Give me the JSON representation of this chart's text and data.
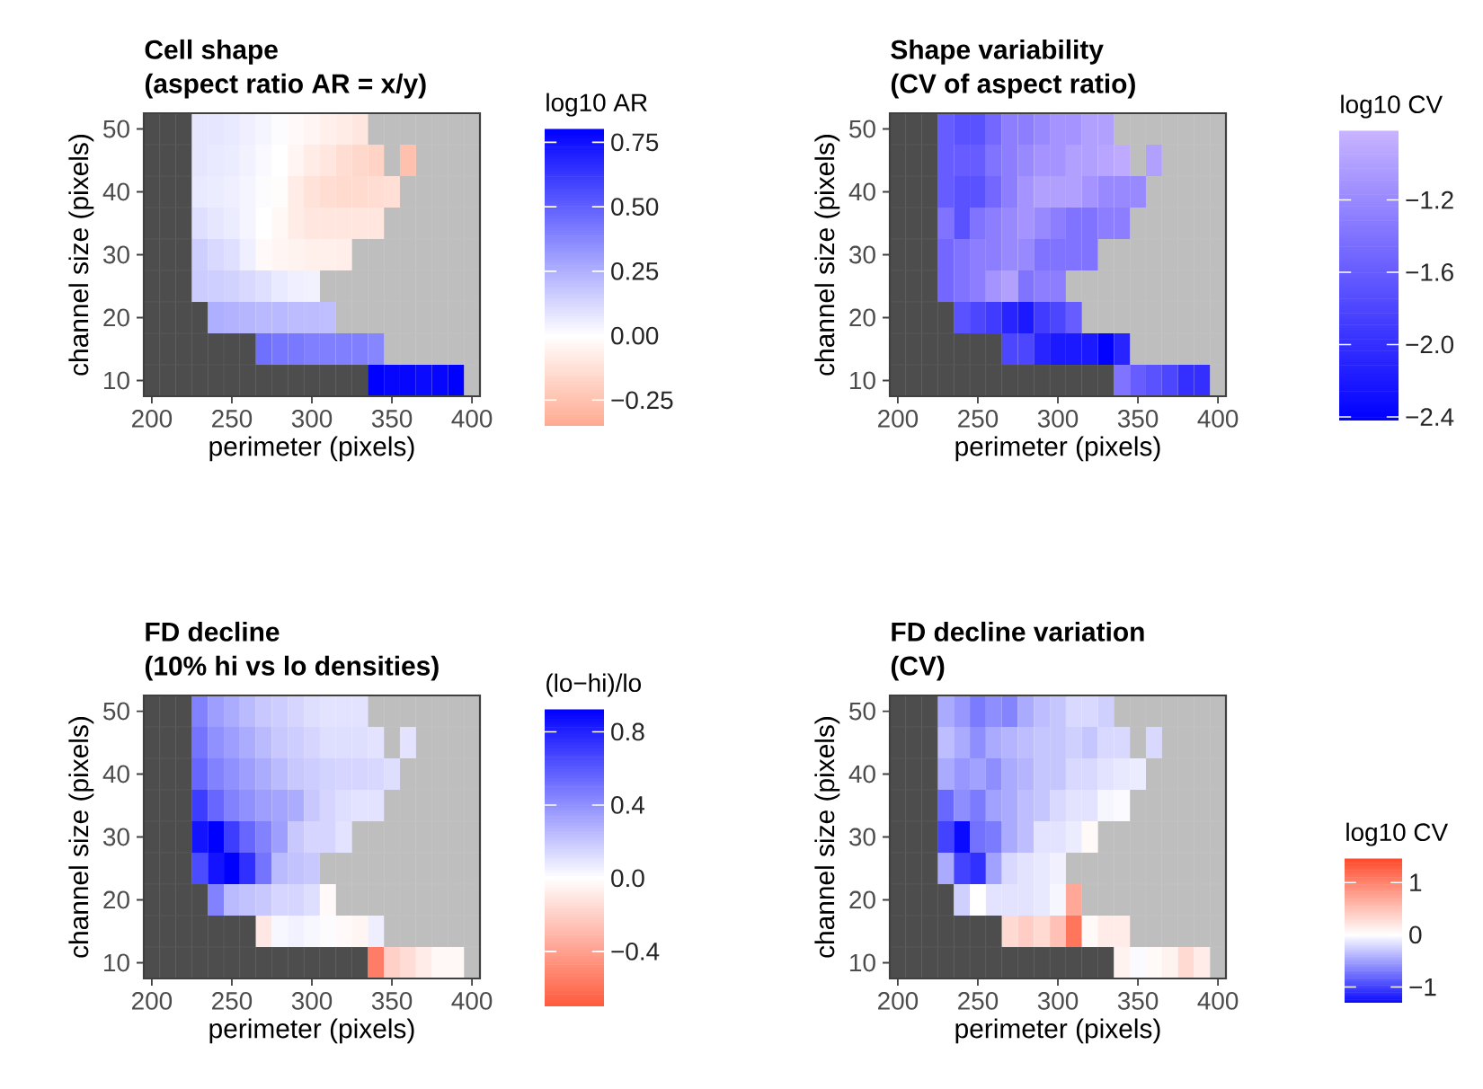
{
  "chart_data": [
    {
      "type": "heatmap",
      "title": "Cell shape",
      "subtitle": "(aspect ratio AR = x/y)",
      "xlabel": "perimeter (pixels)",
      "ylabel": "channel size (pixels)",
      "clabel": "log10 AR",
      "x": [
        200,
        210,
        220,
        230,
        240,
        250,
        260,
        270,
        280,
        290,
        300,
        310,
        320,
        330,
        340,
        350,
        360,
        370,
        380,
        390,
        400
      ],
      "y": [
        50,
        45,
        40,
        35,
        30,
        25,
        20,
        15,
        10
      ],
      "xlim": [
        195,
        405
      ],
      "xticks": [
        200,
        250,
        300,
        350,
        400
      ],
      "ylim": [
        7.5,
        52.5
      ],
      "yticks": [
        10,
        20,
        30,
        40,
        50
      ],
      "clim": [
        -0.35,
        0.8
      ],
      "cticks": [
        {
          "value": 0.75,
          "label": "0.75"
        },
        {
          "value": 0.5,
          "label": "0.50"
        },
        {
          "value": 0.25,
          "label": "0.25"
        },
        {
          "value": 0,
          "label": "0.00"
        },
        {
          "value": -0.25,
          "label": "−0.25"
        }
      ],
      "colors": [
        "#ffaa90",
        "#0000ff"
      ],
      "cells": [
        [
          null,
          null,
          null,
          0.08,
          0.08,
          0.07,
          0.05,
          0.03,
          0.01,
          -0.02,
          -0.04,
          -0.06,
          -0.08,
          -0.1,
          null,
          null,
          null,
          null,
          null,
          null,
          null
        ],
        [
          null,
          null,
          null,
          0.08,
          0.07,
          0.06,
          0.04,
          0.02,
          0,
          -0.04,
          -0.08,
          -0.1,
          -0.14,
          -0.16,
          -0.18,
          null,
          -0.26,
          null,
          null,
          null,
          null
        ],
        [
          null,
          null,
          null,
          0.07,
          0.06,
          0.05,
          0.03,
          0.01,
          -0.01,
          -0.08,
          -0.12,
          -0.14,
          -0.15,
          -0.15,
          -0.14,
          -0.13,
          null,
          null,
          null,
          null,
          null
        ],
        [
          null,
          null,
          null,
          0.1,
          0.08,
          0.06,
          0.03,
          0,
          -0.03,
          -0.08,
          -0.1,
          -0.1,
          -0.1,
          -0.1,
          -0.1,
          null,
          null,
          null,
          null,
          null,
          null
        ],
        [
          null,
          null,
          null,
          0.15,
          0.12,
          0.1,
          0.05,
          -0.02,
          -0.04,
          -0.05,
          -0.06,
          -0.06,
          -0.07,
          null,
          null,
          null,
          null,
          null,
          null,
          null,
          null
        ],
        [
          null,
          null,
          null,
          0.16,
          0.15,
          0.14,
          0.12,
          0.1,
          0.07,
          0.05,
          0.04,
          null,
          null,
          null,
          null,
          null,
          null,
          null,
          null,
          null,
          null
        ],
        [
          null,
          null,
          null,
          null,
          0.25,
          0.24,
          0.23,
          0.22,
          0.22,
          0.21,
          0.21,
          0.2,
          null,
          null,
          null,
          null,
          null,
          null,
          null,
          null,
          null
        ],
        [
          null,
          null,
          null,
          null,
          null,
          null,
          null,
          0.45,
          0.43,
          0.42,
          0.4,
          0.4,
          0.4,
          0.4,
          0.38,
          null,
          null,
          null,
          null,
          null,
          null
        ],
        [
          null,
          null,
          null,
          null,
          null,
          null,
          null,
          null,
          null,
          null,
          null,
          null,
          null,
          null,
          0.8,
          0.78,
          0.78,
          0.77,
          0.78,
          0.8,
          null
        ]
      ]
    },
    {
      "type": "heatmap",
      "title": "Shape variability",
      "subtitle": "(CV of aspect ratio)",
      "xlabel": "perimeter (pixels)",
      "ylabel": "channel size (pixels)",
      "clabel": "log10 CV",
      "x": [
        200,
        210,
        220,
        230,
        240,
        250,
        260,
        270,
        280,
        290,
        300,
        310,
        320,
        330,
        340,
        350,
        360,
        370,
        380,
        390,
        400
      ],
      "y": [
        50,
        45,
        40,
        35,
        30,
        25,
        20,
        15,
        10
      ],
      "xlim": [
        195,
        405
      ],
      "xticks": [
        200,
        250,
        300,
        350,
        400
      ],
      "ylim": [
        7.5,
        52.5
      ],
      "yticks": [
        10,
        20,
        30,
        40,
        50
      ],
      "clim": [
        -2.42,
        -0.82
      ],
      "cticks": [
        {
          "value": -1.2,
          "label": "−1.2"
        },
        {
          "value": -1.6,
          "label": "−1.6"
        },
        {
          "value": -2.0,
          "label": "−2.0"
        },
        {
          "value": -2.4,
          "label": "−2.4"
        }
      ],
      "colors": [
        "#0000ff",
        "#c8b4ff"
      ],
      "cells": [
        [
          null,
          null,
          null,
          -1.6,
          -1.7,
          -1.7,
          -1.5,
          -1.3,
          -1.3,
          -1.2,
          -1.1,
          -1.1,
          -1.0,
          -1.0,
          null,
          null,
          null,
          null,
          null,
          null,
          null
        ],
        [
          null,
          null,
          null,
          -1.6,
          -1.6,
          -1.6,
          -1.4,
          -1.3,
          -1.2,
          -1.1,
          -1.1,
          -1.0,
          -1.0,
          -0.95,
          -0.9,
          null,
          -1.0,
          null,
          null,
          null,
          null
        ],
        [
          null,
          null,
          null,
          -1.6,
          -1.7,
          -1.7,
          -1.5,
          -1.3,
          -1.1,
          -1.0,
          -1.0,
          -1.0,
          -1.1,
          -1.2,
          -1.2,
          -1.2,
          null,
          null,
          null,
          null,
          null
        ],
        [
          null,
          null,
          null,
          -1.4,
          -1.7,
          -1.4,
          -1.3,
          -1.2,
          -1.1,
          -1.2,
          -1.3,
          -1.4,
          -1.4,
          -1.3,
          -1.3,
          null,
          null,
          null,
          null,
          null,
          null
        ],
        [
          null,
          null,
          null,
          -1.5,
          -1.4,
          -1.3,
          -1.3,
          -1.2,
          -1.2,
          -1.4,
          -1.4,
          -1.4,
          -1.4,
          null,
          null,
          null,
          null,
          null,
          null,
          null,
          null
        ],
        [
          null,
          null,
          null,
          -1.5,
          -1.4,
          -1.3,
          -1.1,
          -1.0,
          -1.4,
          -1.3,
          -1.3,
          null,
          null,
          null,
          null,
          null,
          null,
          null,
          null,
          null,
          null
        ],
        [
          null,
          null,
          null,
          null,
          -1.7,
          -1.8,
          -1.9,
          -2.1,
          -2.2,
          -1.9,
          -1.8,
          -1.6,
          null,
          null,
          null,
          null,
          null,
          null,
          null,
          null,
          null
        ],
        [
          null,
          null,
          null,
          null,
          null,
          null,
          null,
          -1.8,
          -1.8,
          -2.1,
          -2.2,
          -2.2,
          -2.2,
          -2.4,
          -2.1,
          null,
          null,
          null,
          null,
          null,
          null
        ],
        [
          null,
          null,
          null,
          null,
          null,
          null,
          null,
          null,
          null,
          null,
          null,
          null,
          null,
          null,
          -1.4,
          -1.6,
          -1.7,
          -1.8,
          -2.0,
          -2.0,
          null
        ]
      ]
    },
    {
      "type": "heatmap",
      "title": "FD decline",
      "subtitle": "(10% hi vs lo densities)",
      "xlabel": "perimeter (pixels)",
      "ylabel": "channel size (pixels)",
      "clabel": "(lo−hi)/lo",
      "x": [
        200,
        210,
        220,
        230,
        240,
        250,
        260,
        270,
        280,
        290,
        300,
        310,
        320,
        330,
        340,
        350,
        360,
        370,
        380,
        390,
        400
      ],
      "y": [
        50,
        45,
        40,
        35,
        30,
        25,
        20,
        15,
        10
      ],
      "xlim": [
        195,
        405
      ],
      "xticks": [
        200,
        250,
        300,
        350,
        400
      ],
      "ylim": [
        7.5,
        52.5
      ],
      "yticks": [
        10,
        20,
        30,
        40,
        50
      ],
      "clim": [
        -0.7,
        0.92
      ],
      "cticks": [
        0.8,
        0.4,
        {
          "value": 0,
          "label": "0.0"
        },
        {
          "value": -0.4,
          "label": "−0.4"
        }
      ],
      "colors": [
        "#ff5a3c",
        "#0000ff"
      ],
      "cells": [
        [
          null,
          null,
          null,
          0.45,
          0.35,
          0.3,
          0.25,
          0.2,
          0.18,
          0.15,
          0.12,
          0.1,
          0.1,
          0.1,
          null,
          null,
          null,
          null,
          null,
          null,
          null
        ],
        [
          null,
          null,
          null,
          0.5,
          0.4,
          0.35,
          0.3,
          0.25,
          0.2,
          0.18,
          0.15,
          0.12,
          0.12,
          0.12,
          0.1,
          null,
          0.1,
          null,
          null,
          null,
          null
        ],
        [
          null,
          null,
          null,
          0.55,
          0.45,
          0.4,
          0.35,
          0.3,
          0.25,
          0.2,
          0.18,
          0.16,
          0.15,
          0.15,
          0.14,
          0.12,
          null,
          null,
          null,
          null,
          null
        ],
        [
          null,
          null,
          null,
          0.7,
          0.55,
          0.45,
          0.4,
          0.35,
          0.33,
          0.3,
          0.2,
          0.15,
          0.12,
          0.1,
          0.1,
          null,
          null,
          null,
          null,
          null,
          null
        ],
        [
          null,
          null,
          null,
          0.85,
          0.92,
          0.7,
          0.55,
          0.45,
          0.35,
          0.2,
          0.15,
          0.15,
          0.1,
          null,
          null,
          null,
          null,
          null,
          null,
          null,
          null
        ],
        [
          null,
          null,
          null,
          0.65,
          0.85,
          0.92,
          0.75,
          0.5,
          0.25,
          0.22,
          0.2,
          null,
          null,
          null,
          null,
          null,
          null,
          null,
          null,
          null,
          null
        ],
        [
          null,
          null,
          null,
          null,
          0.45,
          0.25,
          0.22,
          0.2,
          0.15,
          0.15,
          0.12,
          -0.02,
          null,
          null,
          null,
          null,
          null,
          null,
          null,
          null,
          null
        ],
        [
          null,
          null,
          null,
          null,
          null,
          null,
          null,
          -0.1,
          0.03,
          0.05,
          0.03,
          0.01,
          -0.02,
          -0.04,
          0.06,
          null,
          null,
          null,
          null,
          null,
          null
        ],
        [
          null,
          null,
          null,
          null,
          null,
          null,
          null,
          null,
          null,
          null,
          null,
          null,
          null,
          null,
          -0.55,
          -0.2,
          -0.15,
          -0.08,
          -0.03,
          -0.03,
          null
        ]
      ]
    },
    {
      "type": "heatmap",
      "title": "FD decline variation",
      "subtitle": "(CV)",
      "xlabel": "perimeter (pixels)",
      "ylabel": "channel size (pixels)",
      "clabel": "log10 CV",
      "x": [
        200,
        210,
        220,
        230,
        240,
        250,
        260,
        270,
        280,
        290,
        300,
        310,
        320,
        330,
        340,
        350,
        360,
        370,
        380,
        390,
        400
      ],
      "y": [
        50,
        45,
        40,
        35,
        30,
        25,
        20,
        15,
        10
      ],
      "xlim": [
        195,
        405
      ],
      "xticks": [
        200,
        250,
        300,
        350,
        400
      ],
      "ylim": [
        7.5,
        52.5
      ],
      "yticks": [
        10,
        20,
        30,
        40,
        50
      ],
      "clim": [
        -1.3,
        1.45
      ],
      "cticks": [
        1,
        0,
        {
          "value": -1,
          "label": "−1"
        }
      ],
      "colors": [
        "#0a0aff",
        "#ff4a2a"
      ],
      "cells": [
        [
          null,
          null,
          null,
          -0.45,
          -0.55,
          -0.7,
          -0.6,
          -0.65,
          -0.45,
          -0.35,
          -0.3,
          -0.2,
          -0.2,
          -0.25,
          null,
          null,
          null,
          null,
          null,
          null,
          null
        ],
        [
          null,
          null,
          null,
          -0.35,
          -0.45,
          -0.6,
          -0.45,
          -0.4,
          -0.35,
          -0.3,
          -0.3,
          -0.25,
          -0.3,
          -0.2,
          -0.2,
          null,
          -0.2,
          null,
          null,
          null,
          null
        ],
        [
          null,
          null,
          null,
          -0.45,
          -0.55,
          -0.5,
          -0.6,
          -0.45,
          -0.4,
          -0.3,
          -0.3,
          -0.2,
          -0.2,
          -0.15,
          -0.12,
          -0.1,
          null,
          null,
          null,
          null,
          null
        ],
        [
          null,
          null,
          null,
          -0.8,
          -0.6,
          -0.7,
          -0.5,
          -0.45,
          -0.35,
          -0.3,
          -0.2,
          -0.15,
          -0.15,
          -0.05,
          -0.02,
          null,
          null,
          null,
          null,
          null,
          null
        ],
        [
          null,
          null,
          null,
          -1.0,
          -1.3,
          -0.75,
          -0.7,
          -0.45,
          -0.35,
          -0.15,
          -0.15,
          -0.1,
          0.05,
          null,
          null,
          null,
          null,
          null,
          null,
          null,
          null
        ],
        [
          null,
          null,
          null,
          -0.45,
          -1.0,
          -1.1,
          -0.5,
          -0.2,
          -0.15,
          -0.12,
          -0.08,
          null,
          null,
          null,
          null,
          null,
          null,
          null,
          null,
          null,
          null
        ],
        [
          null,
          null,
          null,
          null,
          -0.25,
          0,
          -0.15,
          -0.15,
          -0.15,
          -0.12,
          -0.05,
          0.7,
          null,
          null,
          null,
          null,
          null,
          null,
          null,
          null,
          null
        ],
        [
          null,
          null,
          null,
          null,
          null,
          null,
          null,
          0.3,
          0.4,
          0.3,
          0.5,
          1.1,
          0.05,
          0.15,
          0.15,
          null,
          null,
          null,
          null,
          null,
          null
        ],
        [
          null,
          null,
          null,
          null,
          null,
          null,
          null,
          null,
          null,
          null,
          null,
          null,
          null,
          null,
          0.1,
          -0.02,
          0.05,
          0.1,
          0.3,
          0.15,
          null
        ]
      ]
    }
  ]
}
